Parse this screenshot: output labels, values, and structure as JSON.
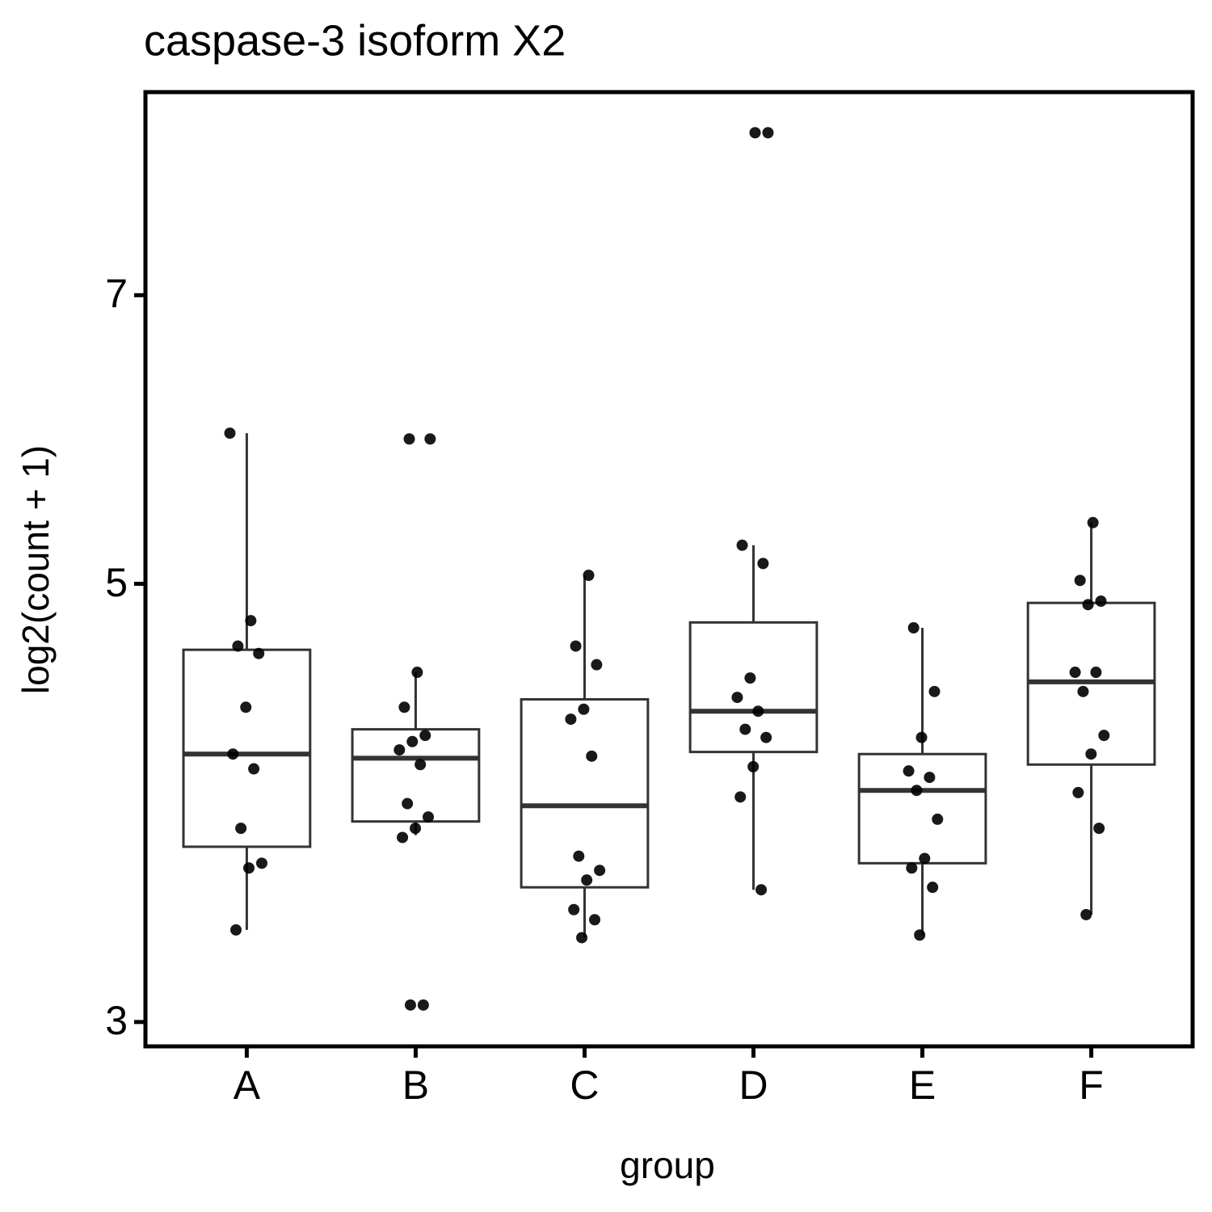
{
  "chart_data": {
    "type": "boxplot",
    "title": "caspase-3 isoform X2",
    "x_label": "group",
    "y_label": "log2(count + 1)",
    "categories": [
      "A",
      "B",
      "C",
      "D",
      "E",
      "F"
    ],
    "boxes": [
      {
        "whisker_low": 3.34,
        "q1": 3.68,
        "median": 4.1,
        "q3": 4.63,
        "whisker_high": 5.96
      },
      {
        "whisker_low": 3.73,
        "q1": 3.79,
        "median": 4.08,
        "q3": 4.22,
        "whisker_high": 4.51
      },
      {
        "whisker_low": 3.31,
        "q1": 3.51,
        "median": 3.86,
        "q3": 4.37,
        "whisker_high": 5.05
      },
      {
        "whisker_low": 3.5,
        "q1": 4.11,
        "median": 4.31,
        "q3": 4.78,
        "whisker_high": 5.23
      },
      {
        "whisker_low": 3.32,
        "q1": 3.61,
        "median": 3.93,
        "q3": 4.1,
        "whisker_high": 4.75
      },
      {
        "whisker_low": 3.4,
        "q1": 4.05,
        "median": 4.46,
        "q3": 4.89,
        "whisker_high": 5.37
      }
    ],
    "points": [
      [
        5.96,
        4.79,
        4.65,
        4.61,
        4.33,
        4.1,
        4.03,
        3.76,
        3.61,
        3.59,
        3.34
      ],
      [
        5.92,
        5.92,
        4.51,
        4.33,
        4.19,
        4.16,
        4.12,
        4.05,
        3.87,
        3.81,
        3.76,
        3.72,
        3.06,
        3.06
      ],
      [
        5.05,
        4.65,
        4.55,
        4.32,
        4.27,
        4.09,
        3.64,
        3.58,
        3.54,
        3.42,
        3.38,
        3.31
      ],
      [
        8.46,
        8.46,
        5.23,
        5.12,
        4.48,
        4.38,
        4.31,
        4.22,
        4.18,
        4.04,
        3.9,
        3.5
      ],
      [
        4.75,
        4.41,
        4.18,
        4.02,
        3.99,
        3.93,
        3.8,
        3.63,
        3.59,
        3.51,
        3.32
      ],
      [
        5.37,
        5.02,
        4.9,
        4.88,
        4.51,
        4.51,
        4.41,
        4.19,
        4.1,
        3.92,
        3.76,
        3.4
      ]
    ],
    "ylim": [
      2.916,
      8.87
    ],
    "yticks": [
      3,
      5,
      7
    ],
    "log_y": true,
    "box_color": "#333333",
    "point_color": "#000000"
  }
}
